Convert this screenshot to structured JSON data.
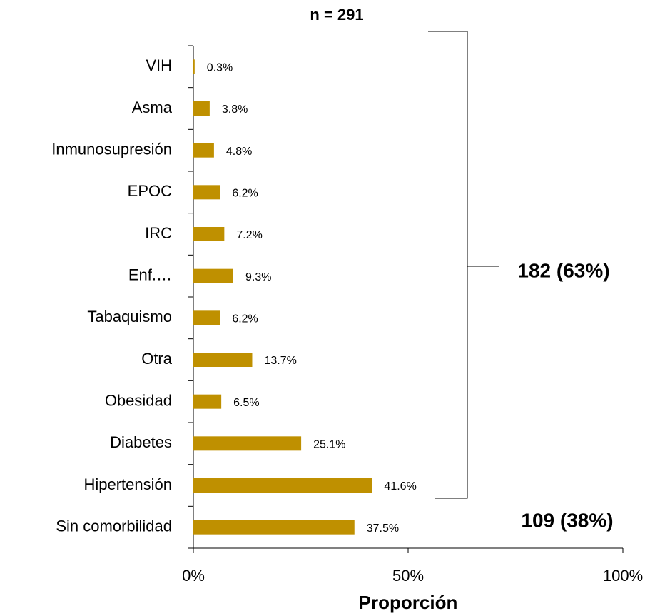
{
  "chart_data": {
    "type": "bar",
    "orientation": "horizontal",
    "title": "n = 291",
    "xlabel": "Proporción",
    "categories": [
      "VIH",
      "Asma",
      "Inmunosupresión",
      "EPOC",
      "IRC",
      "Enf.…",
      "Tabaquismo",
      "Otra",
      "Obesidad",
      "Diabetes",
      "Hipertensión",
      "Sin comorbilidad"
    ],
    "values": [
      0.3,
      3.8,
      4.8,
      6.2,
      7.2,
      9.3,
      6.2,
      13.7,
      6.5,
      25.1,
      41.6,
      37.5
    ],
    "value_labels": [
      "0.3%",
      "3.8%",
      "4.8%",
      "6.2%",
      "7.2%",
      "9.3%",
      "6.2%",
      "13.7%",
      "6.5%",
      "25.1%",
      "41.6%",
      "37.5%"
    ],
    "color": "#bf9000",
    "xlim": [
      0,
      100
    ],
    "xticks": [
      {
        "value": 0,
        "label": "0%"
      },
      {
        "value": 50,
        "label": "50%"
      },
      {
        "value": 100,
        "label": "100%"
      }
    ],
    "annotations": [
      "182 (63%)",
      "109 (38%)"
    ]
  }
}
